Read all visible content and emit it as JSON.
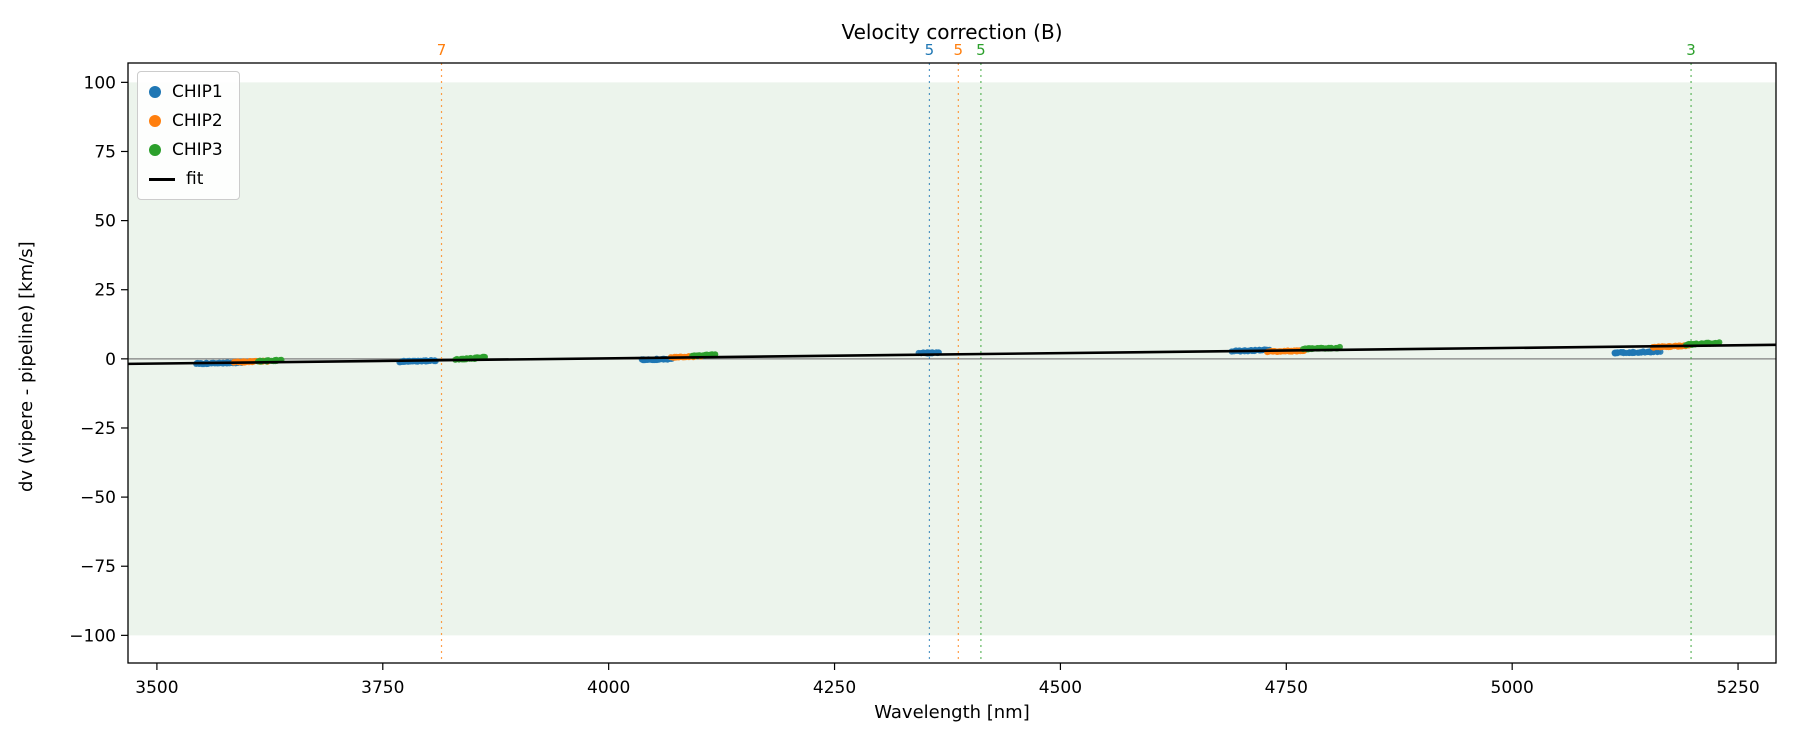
{
  "chart_data": {
    "type": "scatter",
    "title": "Velocity correction (B)",
    "xlabel": "Wavelength [nm]",
    "ylabel": "dv (vipere - pipeline) [km/s]",
    "xlim": [
      3468,
      5292
    ],
    "ylim": [
      -110,
      107
    ],
    "grid": false,
    "legend_position": "upper-left",
    "xticks": [
      {
        "value": 3500,
        "label": "3500"
      },
      {
        "value": 3750,
        "label": "3750"
      },
      {
        "value": 4000,
        "label": "4000"
      },
      {
        "value": 4250,
        "label": "4250"
      },
      {
        "value": 4500,
        "label": "4500"
      },
      {
        "value": 4750,
        "label": "4750"
      },
      {
        "value": 5000,
        "label": "5000"
      },
      {
        "value": 5250,
        "label": "5250"
      }
    ],
    "yticks": [
      {
        "value": 100,
        "label": "100"
      },
      {
        "value": 75,
        "label": "75"
      },
      {
        "value": 50,
        "label": "50"
      },
      {
        "value": 25,
        "label": "25"
      },
      {
        "value": 0,
        "label": "0"
      },
      {
        "value": -25,
        "label": "−25"
      },
      {
        "value": -50,
        "label": "−50"
      },
      {
        "value": -75,
        "label": "−75"
      },
      {
        "value": -100,
        "label": "−100"
      }
    ],
    "band": {
      "y0": -100,
      "y1": 100,
      "color": "#ecf4ec"
    },
    "zero_line": {
      "y": 0,
      "color": "#808080"
    },
    "fit_line": {
      "label": "fit",
      "color": "#000000",
      "points": [
        [
          3468,
          -1.82
        ],
        [
          5292,
          5.06
        ]
      ]
    },
    "vlines": [
      {
        "x": 3815,
        "label": "7",
        "color": "#ff7f0e"
      },
      {
        "x": 4355,
        "label": "5",
        "color": "#1f77b4"
      },
      {
        "x": 4387,
        "label": "5",
        "color": "#ff7f0e"
      },
      {
        "x": 4412,
        "label": "5",
        "color": "#2ca02c"
      },
      {
        "x": 5198,
        "label": "3",
        "color": "#2ca02c"
      }
    ],
    "series": [
      {
        "name": "CHIP1",
        "color": "#1f77b4",
        "segments": [
          {
            "x0": 3543,
            "x1": 3592,
            "y0": -1.75,
            "y1": -1.35,
            "n": 46
          },
          {
            "x0": 3768,
            "x1": 3808,
            "y0": -1.05,
            "y1": -0.65,
            "n": 40
          },
          {
            "x0": 4036,
            "x1": 4068,
            "y0": -0.35,
            "y1": -0.05,
            "n": 34
          },
          {
            "x0": 4344,
            "x1": 4366,
            "y0": 2.05,
            "y1": 2.3,
            "n": 24
          },
          {
            "x0": 4692,
            "x1": 4732,
            "y0": 2.8,
            "y1": 3.2,
            "n": 40
          },
          {
            "x0": 5112,
            "x1": 5162,
            "y0": 2.15,
            "y1": 2.6,
            "n": 46
          }
        ]
      },
      {
        "name": "CHIP2",
        "color": "#ff7f0e",
        "segments": [
          {
            "x0": 3586,
            "x1": 3622,
            "y0": -1.2,
            "y1": -0.85,
            "n": 34
          },
          {
            "x0": 4070,
            "x1": 4100,
            "y0": 0.55,
            "y1": 0.9,
            "n": 30
          },
          {
            "x0": 4730,
            "x1": 4770,
            "y0": 2.6,
            "y1": 3.0,
            "n": 38
          },
          {
            "x0": 5156,
            "x1": 5194,
            "y0": 4.25,
            "y1": 4.75,
            "n": 36
          }
        ]
      },
      {
        "name": "CHIP3",
        "color": "#2ca02c",
        "segments": [
          {
            "x0": 3614,
            "x1": 3636,
            "y0": -0.85,
            "y1": -0.55,
            "n": 20
          },
          {
            "x0": 3832,
            "x1": 3864,
            "y0": -0.25,
            "y1": 0.55,
            "n": 28
          },
          {
            "x0": 4092,
            "x1": 4118,
            "y0": 1.0,
            "y1": 1.5,
            "n": 24
          },
          {
            "x0": 4770,
            "x1": 4808,
            "y0": 3.55,
            "y1": 4.05,
            "n": 36
          },
          {
            "x0": 5192,
            "x1": 5228,
            "y0": 5.1,
            "y1": 5.8,
            "n": 34
          }
        ]
      }
    ],
    "legend": [
      {
        "label": "CHIP1",
        "color": "#1f77b4",
        "marker": "dot"
      },
      {
        "label": "CHIP2",
        "color": "#ff7f0e",
        "marker": "dot"
      },
      {
        "label": "CHIP3",
        "color": "#2ca02c",
        "marker": "dot"
      },
      {
        "label": "fit",
        "color": "#000000",
        "marker": "line"
      }
    ]
  }
}
